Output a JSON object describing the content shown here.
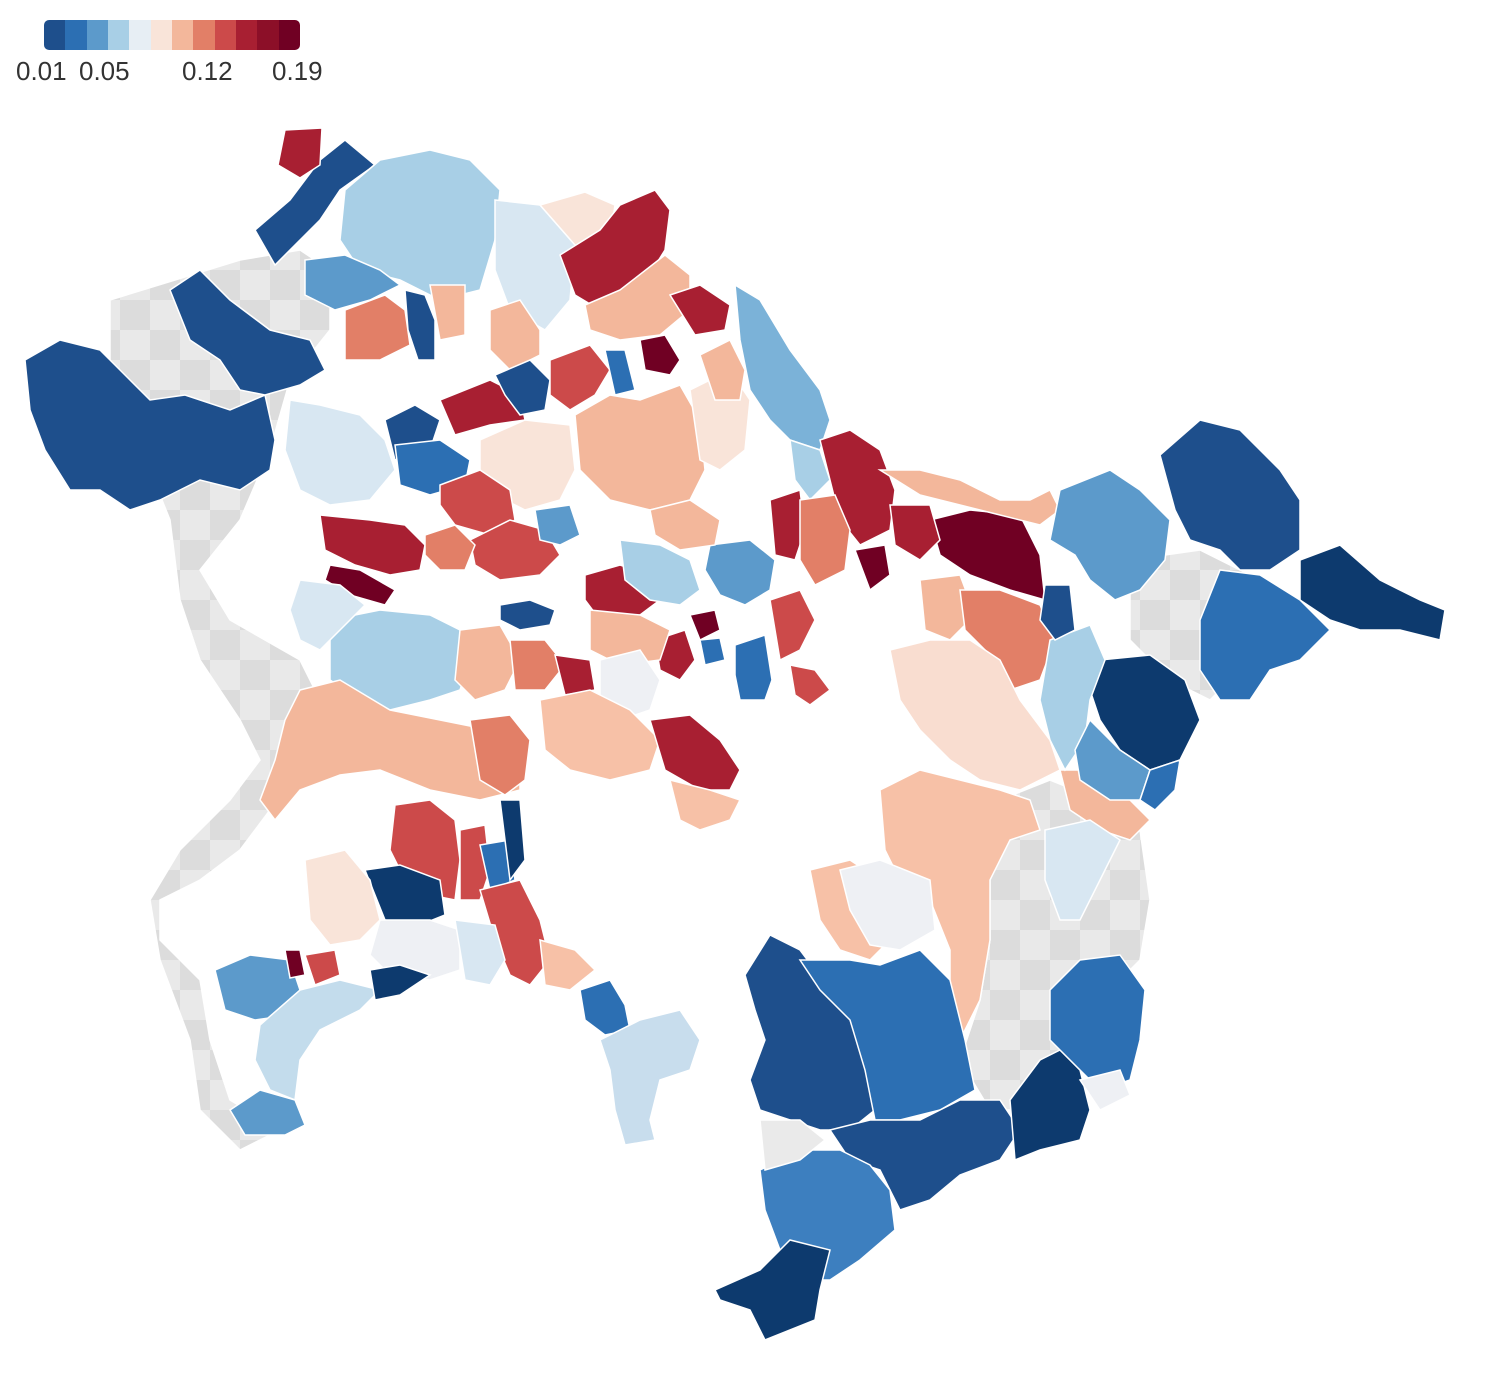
{
  "legend": {
    "ticks": [
      "0.01",
      "0.05",
      "0.12",
      "0.19"
    ],
    "stops": [
      "#1e4f8c",
      "#2c6fb3",
      "#5c9acb",
      "#a8cfe6",
      "#e7eef4",
      "#f9e4d9",
      "#f3b79b",
      "#e27f67",
      "#cc4a4a",
      "#a81f32",
      "#8c0f28",
      "#700023"
    ]
  },
  "chart_data": {
    "type": "choropleth",
    "color_scale": {
      "min": 0.01,
      "max": 0.19,
      "ticks": [
        0.01,
        0.05,
        0.12,
        0.19
      ]
    },
    "no_data_color": "#e8e8e8",
    "water_color": "#ffffff"
  }
}
